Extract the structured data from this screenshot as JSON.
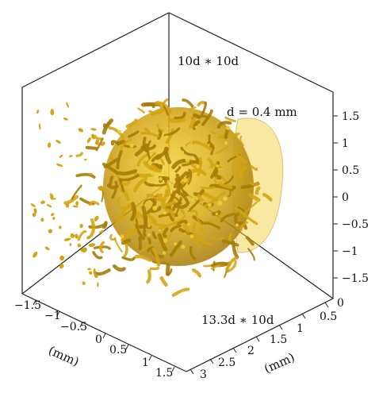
{
  "figure": {
    "annotations": {
      "top_box": "10d ∗ 10d",
      "diameter": "d = 0.4 mm",
      "bottom_box": "13.3d ∗ 10d"
    },
    "axes": {
      "vertical": {
        "ticks": [
          "1.5",
          "1",
          "0.5",
          "0",
          "−0.5",
          "−1",
          "−1.5"
        ]
      },
      "left_depth": {
        "label": "(mm)",
        "ticks": [
          "−1.5",
          "−1",
          "−0.5",
          "0",
          "0.5",
          "1",
          "1.5"
        ]
      },
      "right_depth": {
        "label": "(mm)",
        "ticks": [
          "0",
          "0.5",
          "1",
          "1.5",
          "2",
          "2.5",
          "3"
        ]
      }
    },
    "isosurface": {
      "color": "#d4a513",
      "highlight": "#f2cd2e",
      "shadow": "#a67c05"
    }
  }
}
